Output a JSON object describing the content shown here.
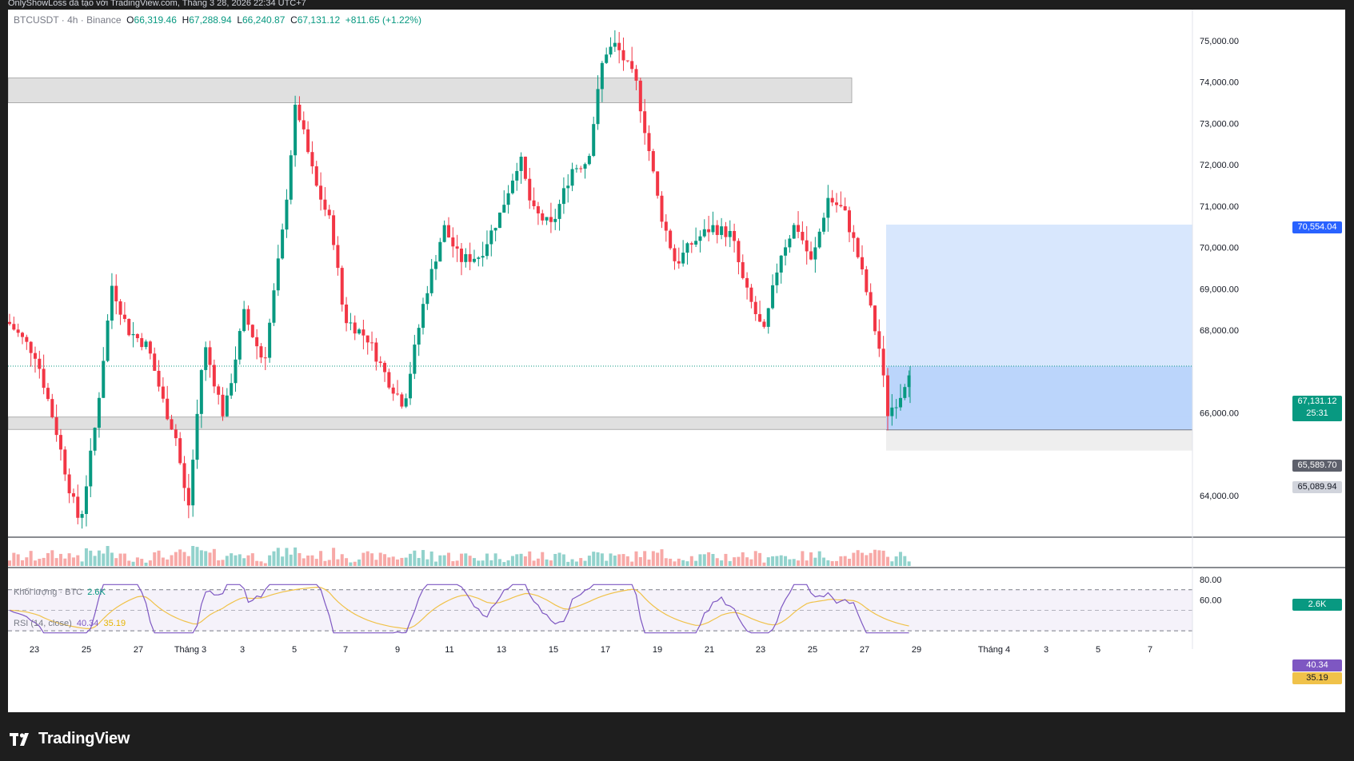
{
  "header": {
    "caption": "OnlyShowLoss đã tạo với TradingView.com, Tháng 3 28, 2026 22:34 UTC+7"
  },
  "legend": {
    "symbol": "BTCUSDT · 4h · Binance",
    "open_label": "O",
    "open": "66,319.46",
    "high_label": "H",
    "high": "67,288.94",
    "low_label": "L",
    "low": "66,240.87",
    "close_label": "C",
    "close": "67,131.12",
    "change": "+811.65 (+1.22%)"
  },
  "volume": {
    "label": "Khối lượng · BTC",
    "value": "2.6K",
    "badge": "2.6K"
  },
  "rsi": {
    "label": "RSI (14, close)",
    "value": "40.34",
    "ma": "35.19",
    "badge_rsi": "40.34",
    "badge_ma": "35.19"
  },
  "price_badges": {
    "target": "70,554.04",
    "current": "67,131.12",
    "countdown": "25:31",
    "entry": "65,589.70",
    "stop": "65,089.94"
  },
  "colors": {
    "up": "#089981",
    "down": "#f23645",
    "rsi": "#7e57c2",
    "rsi_ma": "#f0c24a",
    "target_zone": "#c9defc",
    "zone": "#e0e0e0"
  },
  "logo": {
    "text": "TradingView"
  },
  "chart_data": {
    "type": "candlestick",
    "symbol": "BTCUSDT",
    "interval": "4h",
    "exchange": "Binance",
    "ylim": [
      63000,
      75800
    ],
    "y_ticks": [
      64000,
      65000,
      66000,
      67000,
      68000,
      69000,
      70000,
      71000,
      72000,
      73000,
      74000,
      75000
    ],
    "y_tick_labels": [
      "64,000.00",
      "",
      "66,000.00",
      "",
      "68,000.00",
      "69,000.00",
      "70,000.00",
      "71,000.00",
      "72,000.00",
      "73,000.00",
      "74,000.00",
      "75,000.00"
    ],
    "x_tick_labels": [
      "23",
      "25",
      "27",
      "Tháng 3",
      "3",
      "5",
      "7",
      "9",
      "11",
      "13",
      "15",
      "17",
      "19",
      "21",
      "23",
      "25",
      "27",
      "29",
      "Tháng 4",
      "3",
      "5",
      "7"
    ],
    "zones": [
      {
        "type": "resistance",
        "from": 73500,
        "to": 74100
      },
      {
        "type": "support",
        "from": 65600,
        "to": 65900
      }
    ],
    "position": {
      "entry": 65589.7,
      "stop": 65089.94,
      "target": 70554.04
    },
    "current_price": 67131.12,
    "key_points": [
      {
        "date": "Feb 24",
        "price": 63100
      },
      {
        "date": "Mar 5",
        "price": 73900
      },
      {
        "date": "Mar 9",
        "price": 65800
      },
      {
        "date": "Mar 17",
        "price": 75800
      },
      {
        "date": "Mar 21",
        "price": 70700
      },
      {
        "date": "Mar 23",
        "price": 67500
      },
      {
        "date": "Mar 25",
        "price": 72000
      },
      {
        "date": "Mar 28",
        "price": 65600
      }
    ],
    "rsi_levels": [
      30,
      70
    ],
    "rsi_ticks": [
      60,
      80
    ],
    "rsi_last": 40.34,
    "rsi_ma_last": 35.19,
    "volume_last": "2.6K"
  }
}
